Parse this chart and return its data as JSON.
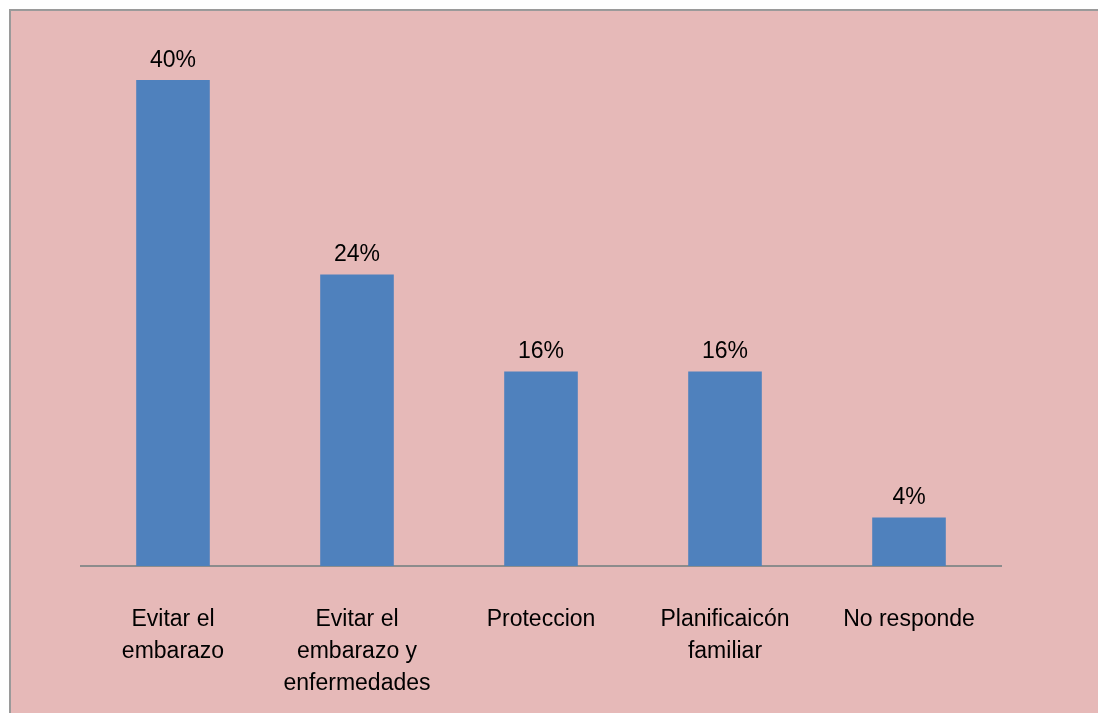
{
  "chart_data": {
    "type": "bar",
    "categories": [
      "Evitar el embarazo",
      "Evitar el embarazo y enfermedades",
      "Proteccion",
      "Planificaicón familiar",
      "No responde"
    ],
    "values": [
      40,
      24,
      16,
      16,
      4
    ],
    "color": "#4f81bd",
    "value_labels": [
      "40%",
      "24%",
      "16%",
      "16%",
      "4%"
    ],
    "tick_labels": "x"
  }
}
